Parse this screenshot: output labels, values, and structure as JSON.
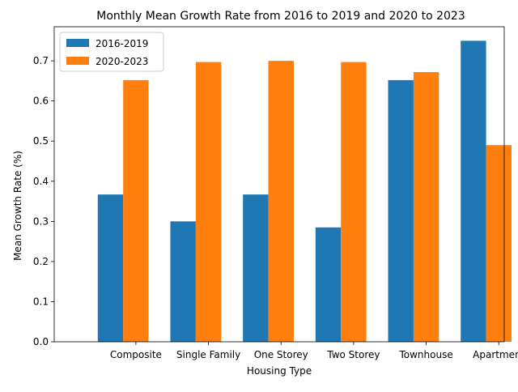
{
  "chart_data": {
    "type": "bar",
    "title": "Monthly Mean Growth Rate from 2016 to 2019 and 2020 to 2023",
    "xlabel": "Housing Type",
    "ylabel": "Mean Growth Rate (%)",
    "ylim": [
      0,
      0.785
    ],
    "yticks": [
      "0.0",
      "0.1",
      "0.2",
      "0.3",
      "0.4",
      "0.5",
      "0.6",
      "0.7"
    ],
    "categories": [
      "Composite",
      "Single Family",
      "One Storey",
      "Two Storey",
      "Townhouse",
      "Apartment"
    ],
    "series": [
      {
        "name": "2016-2019",
        "color": "#1f77b4",
        "values": [
          0.367,
          0.3,
          0.367,
          0.285,
          0.652,
          0.75
        ]
      },
      {
        "name": "2020-2023",
        "color": "#ff7f0e",
        "values": [
          0.652,
          0.697,
          0.7,
          0.697,
          0.672,
          0.49
        ]
      }
    ],
    "legend_position": "top-left",
    "grid": false
  }
}
